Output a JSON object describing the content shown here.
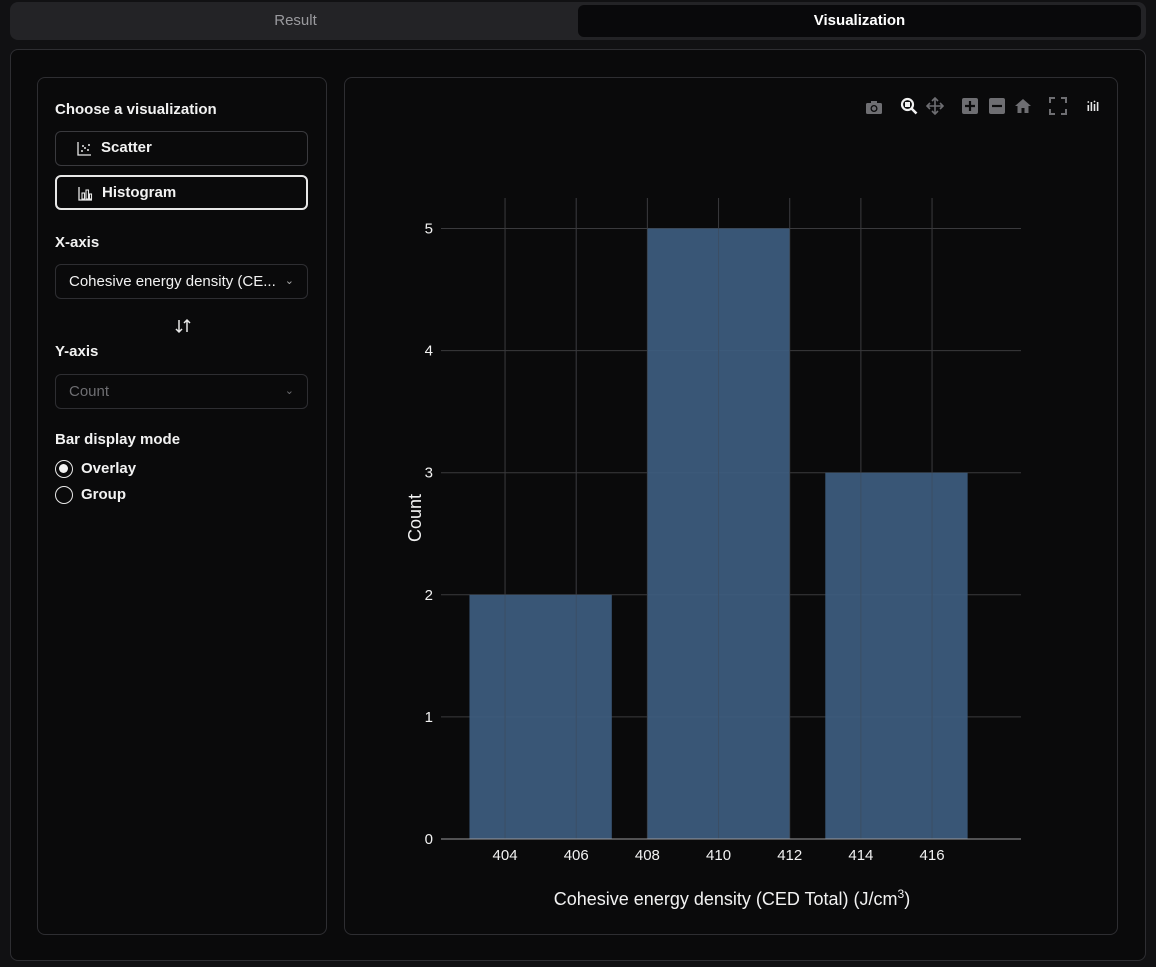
{
  "tabs": [
    {
      "label": "Result"
    },
    {
      "label": "Visualization"
    }
  ],
  "controls": {
    "choose_label": "Choose a visualization",
    "options": [
      {
        "label": "Scatter"
      },
      {
        "label": "Histogram"
      }
    ],
    "x_axis_label": "X-axis",
    "x_axis_value": "Cohesive energy density (CE...",
    "y_axis_label": "Y-axis",
    "y_axis_value": "Count",
    "bar_mode_label": "Bar display mode",
    "bar_modes": [
      {
        "label": "Overlay",
        "checked": true
      },
      {
        "label": "Group",
        "checked": false
      }
    ]
  },
  "modebar": {
    "icons": [
      "camera-icon",
      "zoom-icon",
      "pan-icon",
      "zoom-in-icon",
      "zoom-out-icon",
      "home-icon",
      "autoscale-icon",
      "plotly-logo-icon"
    ]
  },
  "colors": {
    "bar": "#3d5c7f",
    "background": "#0a0a0b",
    "grid": "#3a3a3d"
  },
  "chart_data": {
    "type": "bar",
    "bins": [
      {
        "start": 403,
        "end": 407,
        "count": 2
      },
      {
        "start": 408,
        "end": 412,
        "count": 5
      },
      {
        "start": 413,
        "end": 417,
        "count": 3
      }
    ],
    "xlabel": "Cohesive energy density (CED Total) (J/cm",
    "xlabel_sup": "3",
    "xlabel_end": ")",
    "ylabel": "Count",
    "x_ticks": [
      "404",
      "406",
      "408",
      "410",
      "412",
      "414",
      "416"
    ],
    "y_ticks": [
      "0",
      "1",
      "2",
      "3",
      "4",
      "5"
    ],
    "xlim": [
      402.2,
      418.5
    ],
    "ylim": [
      0,
      5.25
    ]
  }
}
